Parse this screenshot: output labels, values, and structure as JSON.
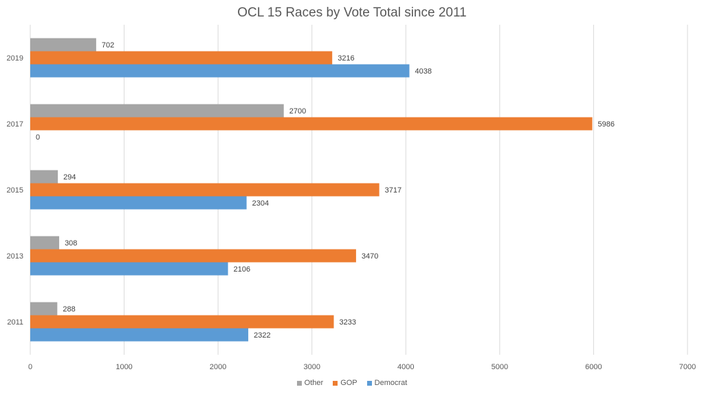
{
  "chart_data": {
    "type": "bar",
    "orientation": "horizontal",
    "title": "OCL 15 Races by Vote Total since 2011",
    "xlabel": "",
    "ylabel": "",
    "xlim": [
      0,
      7000
    ],
    "x_ticks": [
      "0",
      "1000",
      "2000",
      "3000",
      "4000",
      "5000",
      "6000",
      "7000"
    ],
    "x_tick_values": [
      0,
      1000,
      2000,
      3000,
      4000,
      5000,
      6000,
      7000
    ],
    "grid": true,
    "legend_position": "bottom",
    "categories": [
      "2011",
      "2013",
      "2015",
      "2017",
      "2019"
    ],
    "series": [
      {
        "name": "Democrat",
        "color": "#5b9bd5",
        "values": [
          2322,
          2106,
          2304,
          0,
          4038
        ]
      },
      {
        "name": "GOP",
        "color": "#ed7d31",
        "values": [
          3233,
          3470,
          3717,
          5986,
          3216
        ]
      },
      {
        "name": "Other",
        "color": "#a5a5a5",
        "values": [
          288,
          308,
          294,
          2700,
          702
        ]
      }
    ],
    "legend_order": [
      "Other",
      "GOP",
      "Democrat"
    ]
  }
}
